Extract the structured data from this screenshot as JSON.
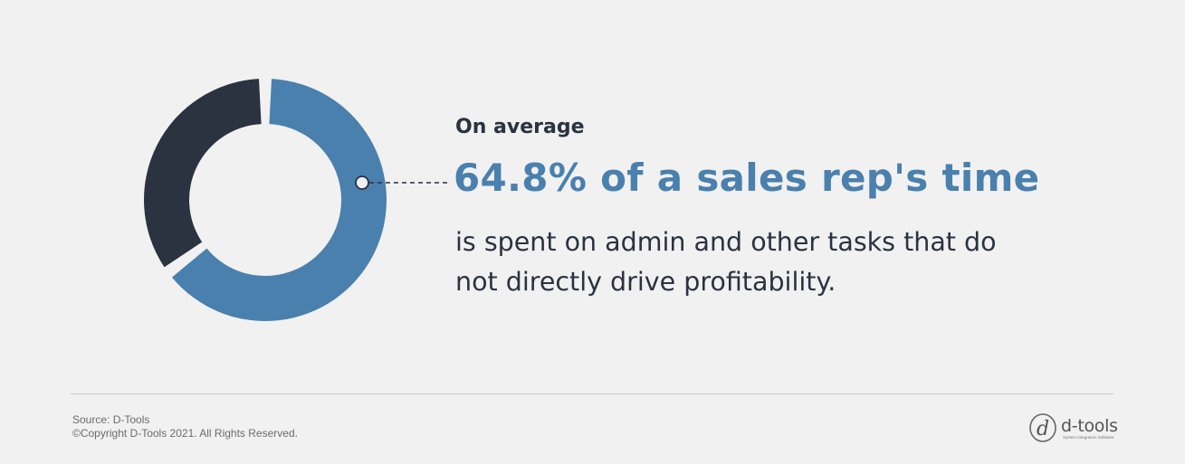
{
  "chart_data": {
    "type": "pie",
    "slices": [
      {
        "value": 64.8,
        "color": "#4a80ad"
      },
      {
        "value": 35.2,
        "color": "#2b3240"
      }
    ]
  },
  "callout": {
    "intro": "On average",
    "headline": "64.8% of a sales rep's time",
    "body": "is spent on admin and other tasks that do not directly drive profitability."
  },
  "footer": {
    "source": "Source: D-Tools",
    "copyright": "©Copyright D-Tools 2021. All Rights Reserved."
  },
  "logo": {
    "wordmark": "d-tools",
    "tagline": "System Integration Software",
    "mark_letter": "d"
  },
  "colors": {
    "background": "#f1f1f1",
    "accent": "#4a80ad",
    "dark": "#2b3240"
  }
}
